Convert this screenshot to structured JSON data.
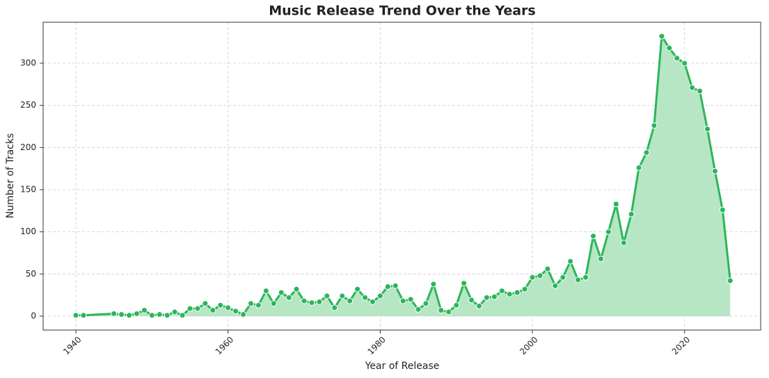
{
  "chart_data": {
    "type": "line",
    "title": "Music Release Trend Over the Years",
    "x_label": "Year of Release",
    "y_label": "Number of Tracks",
    "x": [
      1940,
      1941,
      1945,
      1946,
      1947,
      1948,
      1949,
      1950,
      1951,
      1952,
      1953,
      1954,
      1955,
      1956,
      1957,
      1958,
      1959,
      1960,
      1961,
      1962,
      1963,
      1964,
      1965,
      1966,
      1967,
      1968,
      1969,
      1970,
      1971,
      1972,
      1973,
      1974,
      1975,
      1976,
      1977,
      1978,
      1979,
      1980,
      1981,
      1982,
      1983,
      1984,
      1985,
      1986,
      1987,
      1988,
      1989,
      1990,
      1991,
      1992,
      1993,
      1994,
      1995,
      1996,
      1997,
      1998,
      1999,
      2000,
      2001,
      2002,
      2003,
      2004,
      2005,
      2006,
      2007,
      2008,
      2009,
      2010,
      2011,
      2012,
      2013,
      2014,
      2015,
      2016,
      2017,
      2018,
      2019,
      2020,
      2021,
      2022,
      2023,
      2024,
      2025,
      2026
    ],
    "values": [
      1,
      1,
      3,
      2,
      1,
      3,
      7,
      1,
      2,
      1,
      5,
      1,
      9,
      9,
      15,
      7,
      13,
      10,
      6,
      2,
      15,
      13,
      30,
      15,
      28,
      22,
      32,
      18,
      16,
      17,
      24,
      10,
      24,
      18,
      32,
      22,
      17,
      24,
      35,
      36,
      18,
      20,
      8,
      15,
      38,
      7,
      5,
      13,
      39,
      19,
      12,
      22,
      23,
      30,
      26,
      28,
      32,
      46,
      48,
      56,
      36,
      46,
      65,
      43,
      46,
      95,
      68,
      100,
      133,
      87,
      121,
      176,
      194,
      226,
      332,
      318,
      306,
      300,
      271,
      267,
      222,
      172,
      126,
      42
    ],
    "color": "#2bb55a",
    "fill": true,
    "fill_color": "#b7e6c5",
    "xlim": [
      1935.7,
      2030
    ],
    "ylim": [
      -16.5,
      348.6
    ],
    "xticks": [
      1940,
      1960,
      1980,
      2000,
      2020
    ],
    "yticks": [
      0,
      50,
      100,
      150,
      200,
      250,
      300
    ],
    "grid": true
  }
}
